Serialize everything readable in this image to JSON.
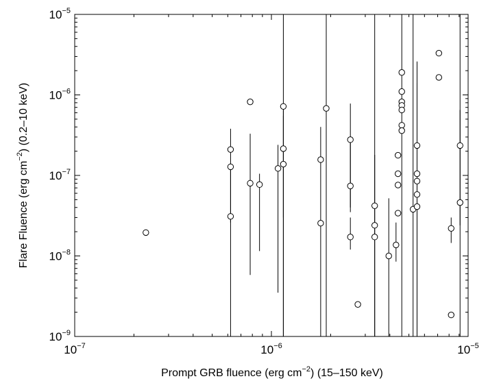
{
  "chart_data": {
    "type": "scatter",
    "title": "",
    "xlabel": {
      "text": "Prompt GRB fluence (erg cm",
      "sup": "−2",
      "tail": ") (15–150 keV)"
    },
    "ylabel": {
      "text": "Flare Fluence (erg cm",
      "sup": "−2",
      "tail": ") (0.2–10 keV)"
    },
    "xscale": "log",
    "yscale": "log",
    "xlim": [
      1e-07,
      1e-05
    ],
    "ylim": [
      1e-09,
      1e-05
    ],
    "xticks": [
      {
        "value": 1e-07,
        "base": "10",
        "exp": "−7"
      },
      {
        "value": 1e-06,
        "base": "10",
        "exp": "−6"
      },
      {
        "value": 1e-05,
        "base": "10",
        "exp": "−5"
      }
    ],
    "yticks": [
      {
        "value": 1e-09,
        "base": "10",
        "exp": "−9"
      },
      {
        "value": 1e-08,
        "base": "10",
        "exp": "−8"
      },
      {
        "value": 1e-07,
        "base": "10",
        "exp": "−7"
      },
      {
        "value": 1e-06,
        "base": "10",
        "exp": "−6"
      },
      {
        "value": 1e-05,
        "base": "10",
        "exp": "−5"
      }
    ],
    "grid": false,
    "legend": "none",
    "marker": "open-circle",
    "color": "#000000",
    "points": [
      {
        "x": 2.3e-07,
        "y": 1.95e-08
      },
      {
        "x": 6.2e-07,
        "y": 2.1e-07
      },
      {
        "x": 6.2e-07,
        "y": 1.28e-07,
        "err": [
          2.6e-08,
          3.8e-07
        ]
      },
      {
        "x": 6.2e-07,
        "y": 3.1e-08,
        "err": [
          1e-09,
          1.4e-07
        ]
      },
      {
        "x": 7.8e-07,
        "y": 8.2e-07
      },
      {
        "x": 7.8e-07,
        "y": 8e-08,
        "err": [
          5.8e-09,
          3.3e-07
        ]
      },
      {
        "x": 8.7e-07,
        "y": 7.7e-08,
        "err": [
          1.15e-08,
          1.05e-07
        ]
      },
      {
        "x": 1.08e-06,
        "y": 1.22e-07,
        "err": [
          3.5e-09,
          2.4e-07
        ]
      },
      {
        "x": 1.15e-06,
        "y": 7.2e-07,
        "err": [
          1e-09,
          1e-05
        ]
      },
      {
        "x": 1.15e-06,
        "y": 2.15e-07,
        "err": [
          1e-09,
          6.5e-07
        ]
      },
      {
        "x": 1.15e-06,
        "y": 1.38e-07,
        "err": [
          3e-08,
          5.5e-07
        ]
      },
      {
        "x": 1.78e-06,
        "y": 1.57e-07,
        "err": [
          1e-09,
          4e-07
        ]
      },
      {
        "x": 1.78e-06,
        "y": 2.55e-08
      },
      {
        "x": 1.9e-06,
        "y": 6.8e-07,
        "err": [
          1e-09,
          1e-05
        ]
      },
      {
        "x": 2.52e-06,
        "y": 2.78e-07,
        "err": [
          4e-08,
          7.8e-07
        ]
      },
      {
        "x": 2.52e-06,
        "y": 7.4e-08,
        "err": [
          3.5e-08,
          2.8e-07
        ]
      },
      {
        "x": 2.52e-06,
        "y": 1.72e-08,
        "err": [
          1.2e-08,
          3e-08
        ]
      },
      {
        "x": 2.75e-06,
        "y": 2.5e-09
      },
      {
        "x": 3.35e-06,
        "y": 4.2e-08,
        "err": [
          1e-09,
          1e-05
        ]
      },
      {
        "x": 3.35e-06,
        "y": 2.4e-08,
        "err": [
          1e-09,
          1.8e-07
        ]
      },
      {
        "x": 3.35e-06,
        "y": 1.72e-08
      },
      {
        "x": 3.95e-06,
        "y": 1e-08,
        "err": [
          1e-09,
          5.2e-08
        ]
      },
      {
        "x": 4.3e-06,
        "y": 1.37e-08,
        "err": [
          8.5e-09,
          2.6e-08
        ]
      },
      {
        "x": 4.4e-06,
        "y": 1.78e-07
      },
      {
        "x": 4.4e-06,
        "y": 1.05e-07
      },
      {
        "x": 4.4e-06,
        "y": 7.6e-08
      },
      {
        "x": 4.4e-06,
        "y": 3.4e-08
      },
      {
        "x": 4.6e-06,
        "y": 1.9e-06,
        "err": [
          1e-09,
          1e-05
        ]
      },
      {
        "x": 4.6e-06,
        "y": 1.1e-06
      },
      {
        "x": 4.6e-06,
        "y": 8.2e-07
      },
      {
        "x": 4.6e-06,
        "y": 7.4e-07
      },
      {
        "x": 4.6e-06,
        "y": 6.5e-07
      },
      {
        "x": 4.6e-06,
        "y": 4.2e-07
      },
      {
        "x": 4.6e-06,
        "y": 3.6e-07
      },
      {
        "x": 5.25e-06,
        "y": 3.8e-08,
        "err": [
          1e-09,
          1e-05
        ]
      },
      {
        "x": 5.5e-06,
        "y": 2.35e-07,
        "err": [
          1e-09,
          2.6e-06
        ]
      },
      {
        "x": 5.5e-06,
        "y": 1.05e-07
      },
      {
        "x": 5.5e-06,
        "y": 8.5e-08
      },
      {
        "x": 5.5e-06,
        "y": 5.8e-08
      },
      {
        "x": 5.5e-06,
        "y": 4.1e-08,
        "err": [
          1e-09,
          1.4e-06
        ]
      },
      {
        "x": 7.1e-06,
        "y": 3.3e-06
      },
      {
        "x": 7.1e-06,
        "y": 1.65e-06
      },
      {
        "x": 8.2e-06,
        "y": 2.2e-08,
        "err": [
          1.45e-08,
          3e-08
        ]
      },
      {
        "x": 8.2e-06,
        "y": 1.85e-09
      },
      {
        "x": 9.1e-06,
        "y": 2.35e-07,
        "err": [
          1e-09,
          1e-05
        ]
      },
      {
        "x": 9.1e-06,
        "y": 4.6e-08,
        "err": [
          2.4e-08,
          6.5e-07
        ]
      }
    ]
  }
}
